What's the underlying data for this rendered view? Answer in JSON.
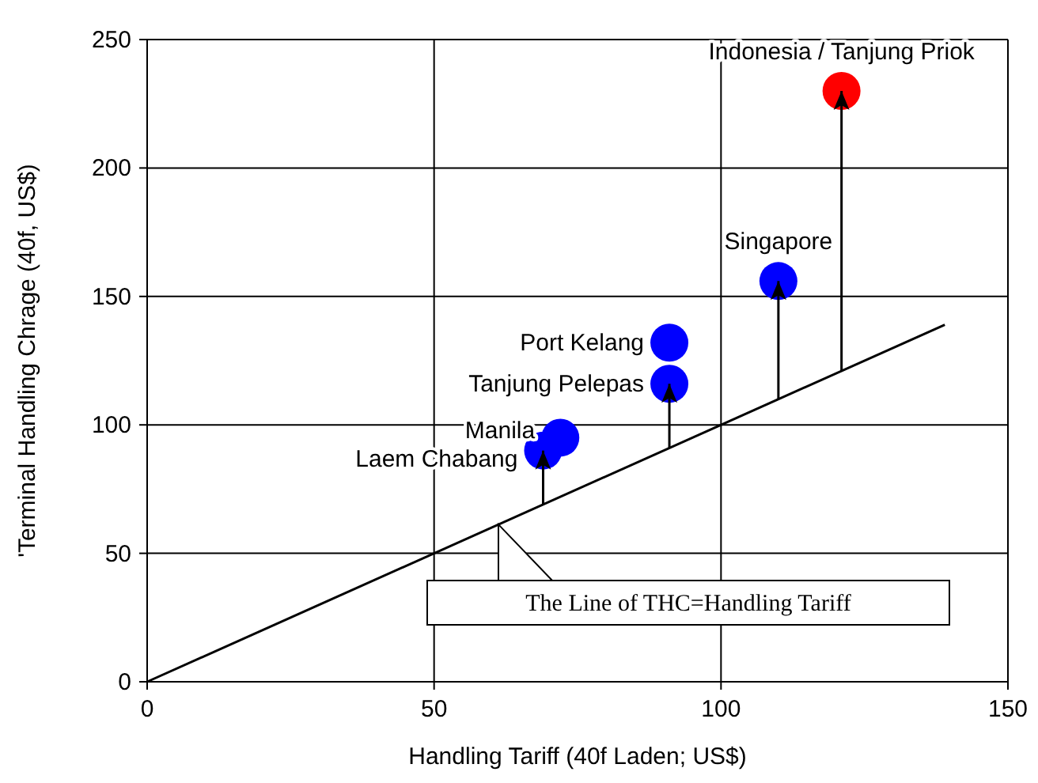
{
  "chart_data": {
    "type": "scatter",
    "xlabel": "Handling Tariff (40f Laden; US$)",
    "ylabel": "'Terminal Handling Chrage (40f, US$)",
    "xlim": [
      0,
      150
    ],
    "xticks": [
      0,
      50,
      100,
      150
    ],
    "ylim": [
      0,
      250
    ],
    "yticks": [
      0,
      50,
      100,
      150,
      200,
      250
    ],
    "grid": true,
    "marker": "circle",
    "series": [
      {
        "type": "line",
        "color": "#000000",
        "x": [
          0,
          139
        ],
        "values": [
          0,
          139
        ],
        "marker": "none"
      },
      {
        "name": "Laem Chabang",
        "color": "#0000ff",
        "x": [
          69
        ],
        "values": [
          90
        ],
        "errors": [
          [
            69,
            90
          ]
        ]
      },
      {
        "name": "Manila",
        "color": "#0000ff",
        "x": [
          72
        ],
        "values": [
          95
        ]
      },
      {
        "name": "Tanjung Pelepas",
        "color": "#0000ff",
        "x": [
          91
        ],
        "values": [
          116
        ],
        "errors": [
          [
            91,
            116
          ]
        ]
      },
      {
        "name": "Port Kelang",
        "color": "#0000ff",
        "x": [
          91
        ],
        "values": [
          132
        ]
      },
      {
        "name": "Singapore",
        "color": "#0000ff",
        "x": [
          110
        ],
        "values": [
          156
        ],
        "errors": [
          [
            110,
            156
          ]
        ]
      },
      {
        "name": "Indonesia / Tanjung Priok",
        "color": "#ff0000",
        "x": [
          121
        ],
        "values": [
          230
        ],
        "errors": [
          [
            121,
            230
          ]
        ]
      }
    ],
    "annotations": [
      "The Line of THC=Handling Tariff"
    ]
  }
}
